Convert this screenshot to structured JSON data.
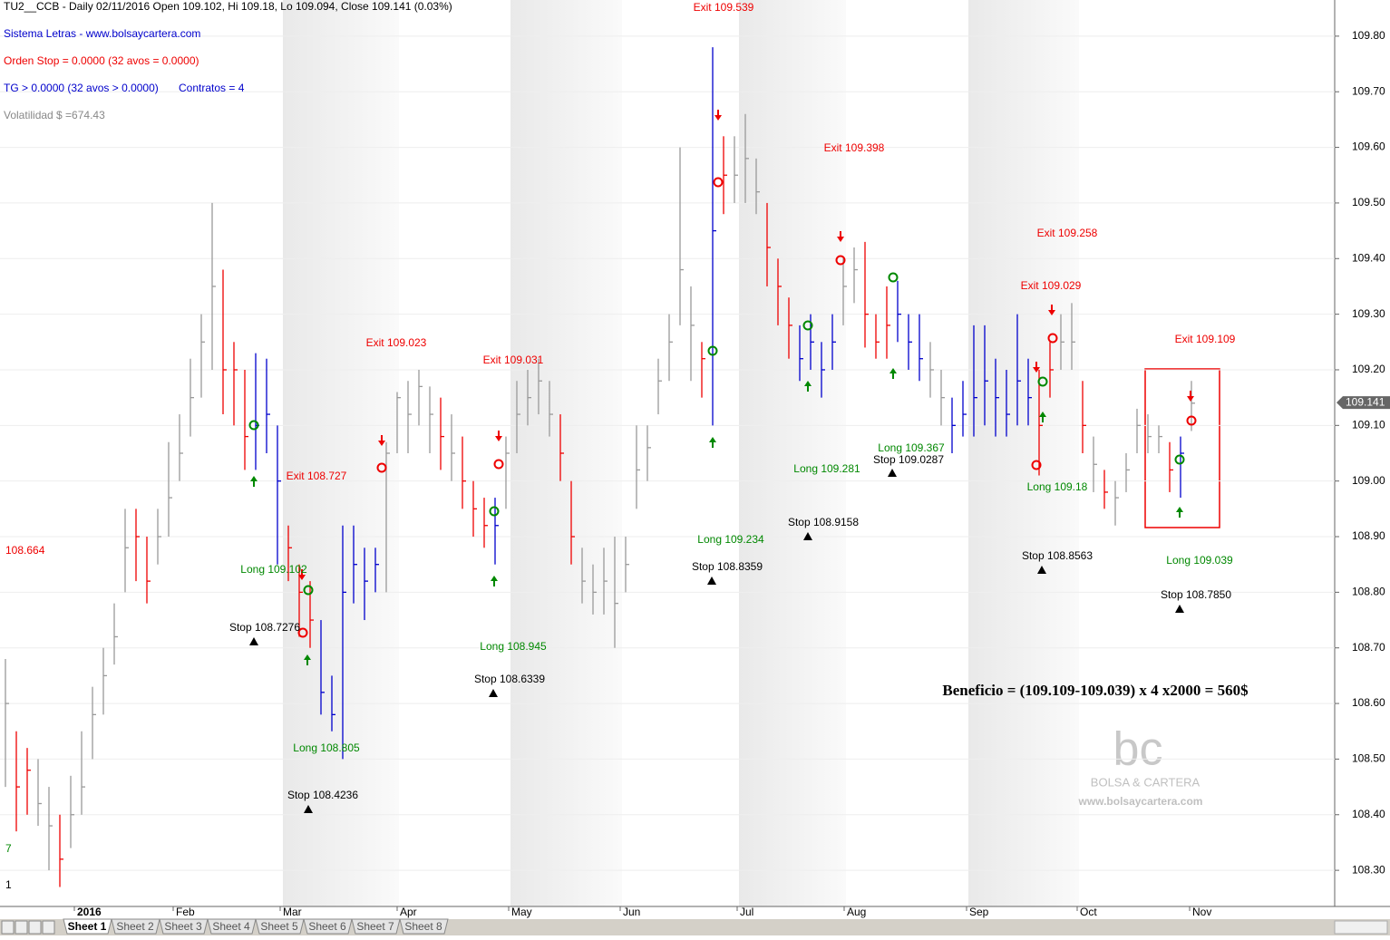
{
  "chart_data": {
    "type": "ohlc",
    "header": [
      "TU2__CCB - Daily 02/11/2016  Open 109.102,  Hi 109.18,  Lo 109.094,  Close 109.141 (0.03%)",
      "Sistema Letras - www.bolsaycartera.com",
      "Orden Stop =  0.0000 (32 avos = 0.0000)",
      "TG >  0.0000 (32 avos > 0.0000)",
      "Contratos =  4",
      "Volatilidad $ =674.43"
    ],
    "left_labels": [
      "108.664",
      "7",
      "1"
    ],
    "ylim": [
      108.235,
      109.865
    ],
    "yticks": [
      {
        "value": 108.3,
        "label": "108.30"
      },
      {
        "value": 108.4,
        "label": "108.40"
      },
      {
        "value": 108.5,
        "label": "108.50"
      },
      {
        "value": 108.6,
        "label": "108.60"
      },
      {
        "value": 108.7,
        "label": "108.70"
      },
      {
        "value": 108.8,
        "label": "108.80"
      },
      {
        "value": 108.9,
        "label": "108.90"
      },
      {
        "value": 109.0,
        "label": "109.00"
      },
      {
        "value": 109.1,
        "label": "109.10"
      },
      {
        "value": 109.2,
        "label": "109.20"
      },
      {
        "value": 109.3,
        "label": "109.30"
      },
      {
        "value": 109.4,
        "label": "109.40"
      },
      {
        "value": 109.5,
        "label": "109.50"
      },
      {
        "value": 109.6,
        "label": "109.60"
      },
      {
        "value": 109.7,
        "label": "109.70"
      },
      {
        "value": 109.8,
        "label": "109.80"
      }
    ],
    "months": [
      "2016",
      "Feb",
      "Mar",
      "Apr",
      "May",
      "Jun",
      "Jul",
      "Aug",
      "Sep",
      "Oct",
      "Nov"
    ],
    "last_price": 109.141,
    "high": [
      108.68,
      108.55,
      108.52,
      108.5,
      108.45,
      108.4,
      108.47,
      108.55,
      108.63,
      108.7,
      108.78,
      108.95,
      108.95,
      108.9,
      108.95,
      109.07,
      109.12,
      109.22,
      109.3,
      109.5,
      109.38,
      109.25,
      109.2,
      109.23,
      109.22,
      109.1,
      108.92,
      108.85,
      108.82,
      108.75,
      108.65,
      108.92,
      108.92,
      108.88,
      108.88,
      109.07,
      109.16,
      109.18,
      109.2,
      109.17,
      109.15,
      109.12,
      109.08,
      109.0,
      108.97,
      108.97,
      109.08,
      109.18,
      109.2,
      109.22,
      109.18,
      109.12,
      109.0,
      108.88,
      108.85,
      108.88,
      108.9,
      108.9,
      109.1,
      109.1,
      109.22,
      109.3,
      109.6,
      109.35,
      109.25,
      109.78,
      109.62,
      109.62,
      109.66,
      109.58,
      109.5,
      109.4,
      109.33,
      109.28,
      109.3,
      109.25,
      109.3,
      109.4,
      109.42,
      109.43,
      109.3,
      109.35,
      109.36,
      109.3,
      109.3,
      109.25,
      109.2,
      109.15,
      109.18,
      109.28,
      109.28,
      109.22,
      109.2,
      109.3,
      109.22,
      109.2,
      109.25,
      109.3,
      109.32,
      109.18,
      109.08,
      109.02,
      109.0,
      109.05,
      109.13,
      109.12,
      109.1,
      109.07,
      109.08,
      109.18
    ],
    "low": [
      108.45,
      108.37,
      108.4,
      108.38,
      108.3,
      108.27,
      108.34,
      108.4,
      108.5,
      108.58,
      108.67,
      108.8,
      108.82,
      108.78,
      108.85,
      108.9,
      109.0,
      109.08,
      109.15,
      109.2,
      109.12,
      109.1,
      109.02,
      109.02,
      109.05,
      108.85,
      108.82,
      108.72,
      108.7,
      108.58,
      108.55,
      108.5,
      108.78,
      108.75,
      108.8,
      108.8,
      109.05,
      109.05,
      109.1,
      109.05,
      109.02,
      109.0,
      108.95,
      108.9,
      108.88,
      108.85,
      108.95,
      109.05,
      109.1,
      109.12,
      109.08,
      109.0,
      108.85,
      108.78,
      108.76,
      108.76,
      108.7,
      108.8,
      108.95,
      109.0,
      109.12,
      109.18,
      109.28,
      109.18,
      109.15,
      109.1,
      109.48,
      109.5,
      109.5,
      109.48,
      109.35,
      109.28,
      109.22,
      109.18,
      109.2,
      109.15,
      109.2,
      109.28,
      109.32,
      109.24,
      109.22,
      109.22,
      109.25,
      109.2,
      109.18,
      109.15,
      109.1,
      109.05,
      109.08,
      109.08,
      109.1,
      109.08,
      109.08,
      109.1,
      109.1,
      109.01,
      109.15,
      109.2,
      109.2,
      109.05,
      108.98,
      108.95,
      108.92,
      108.98,
      109.05,
      109.05,
      109.05,
      108.98,
      108.97,
      109.09
    ],
    "close": [
      108.6,
      108.45,
      108.48,
      108.42,
      108.38,
      108.32,
      108.4,
      108.45,
      108.58,
      108.65,
      108.72,
      108.88,
      108.9,
      108.82,
      108.9,
      108.97,
      109.05,
      109.15,
      109.25,
      109.35,
      109.2,
      109.2,
      109.08,
      109.1,
      109.12,
      109.0,
      108.88,
      108.8,
      108.75,
      108.62,
      108.58,
      108.8,
      108.85,
      108.82,
      108.85,
      109.05,
      109.15,
      109.12,
      109.17,
      109.12,
      109.08,
      109.05,
      109.0,
      108.95,
      108.92,
      108.92,
      109.05,
      109.12,
      109.15,
      109.18,
      109.12,
      109.05,
      108.9,
      108.82,
      108.8,
      108.82,
      108.78,
      108.85,
      109.02,
      109.06,
      109.18,
      109.25,
      109.38,
      109.28,
      109.22,
      109.45,
      109.55,
      109.55,
      109.58,
      109.52,
      109.42,
      109.35,
      109.28,
      109.22,
      109.25,
      109.2,
      109.25,
      109.35,
      109.38,
      109.3,
      109.25,
      109.28,
      109.3,
      109.25,
      109.22,
      109.2,
      109.15,
      109.1,
      109.12,
      109.15,
      109.18,
      109.15,
      109.12,
      109.18,
      109.15,
      109.1,
      109.2,
      109.25,
      109.25,
      109.1,
      109.03,
      108.98,
      108.97,
      109.02,
      109.1,
      109.08,
      109.08,
      109.02,
      109.05,
      109.14
    ],
    "colors": [
      "#999",
      "#e00",
      "#e00",
      "#999",
      "#999",
      "#e00",
      "#999",
      "#999",
      "#999",
      "#999",
      "#999",
      "#999",
      "#e00",
      "#e00",
      "#999",
      "#999",
      "#999",
      "#999",
      "#999",
      "#999",
      "#e00",
      "#e00",
      "#e00",
      "#00c",
      "#00c",
      "#00c",
      "#e00",
      "#e00",
      "#e00",
      "#00c",
      "#00c",
      "#00c",
      "#00c",
      "#00c",
      "#00c",
      "#999",
      "#999",
      "#999",
      "#999",
      "#999",
      "#e00",
      "#999",
      "#e00",
      "#e00",
      "#e00",
      "#00c",
      "#999",
      "#999",
      "#999",
      "#999",
      "#999",
      "#e00",
      "#e00",
      "#999",
      "#999",
      "#999",
      "#999",
      "#999",
      "#999",
      "#999",
      "#999",
      "#999",
      "#999",
      "#999",
      "#e00",
      "#00c",
      "#e00",
      "#999",
      "#999",
      "#999",
      "#e00",
      "#e00",
      "#e00",
      "#00c",
      "#00c",
      "#00c",
      "#00c",
      "#999",
      "#999",
      "#e00",
      "#e00",
      "#e00",
      "#00c",
      "#00c",
      "#00c",
      "#999",
      "#999",
      "#00c",
      "#00c",
      "#00c",
      "#00c",
      "#00c",
      "#00c",
      "#00c",
      "#00c",
      "#e00",
      "#e00",
      "#999",
      "#999",
      "#e00",
      "#999",
      "#e00",
      "#999",
      "#999",
      "#999",
      "#999",
      "#999",
      "#e00",
      "#00c",
      "#999"
    ],
    "annotations": [
      "Exit 109.539",
      "Exit 109.398",
      "Exit 109.258",
      "Exit 109.029",
      "Exit 109.109",
      "Exit 109.023",
      "Exit 109.031",
      "Exit 108.727",
      "Long 109.367",
      "Stop 109.0287",
      "Long 109.281",
      "Long 109.18",
      "Stop 108.9158",
      "Long 109.234",
      "Stop 108.8563",
      "Long 109.039",
      "Long 109.102",
      "Stop 108.8359",
      "Stop 108.7850",
      "Stop 108.7276",
      "Long 108.945",
      "Stop 108.6339",
      "Long 108.805",
      "Stop 108.4236"
    ],
    "benefit": "Beneficio = (109.109-109.039) x 4 x2000 = 560$",
    "watermark": [
      "bc",
      "BOLSA & CARTERA",
      "www.bolsaycartera.com"
    ],
    "sheets": [
      "Sheet 1",
      "Sheet 2",
      "Sheet 3",
      "Sheet 4",
      "Sheet 5",
      "Sheet 6",
      "Sheet 7",
      "Sheet 8"
    ]
  }
}
